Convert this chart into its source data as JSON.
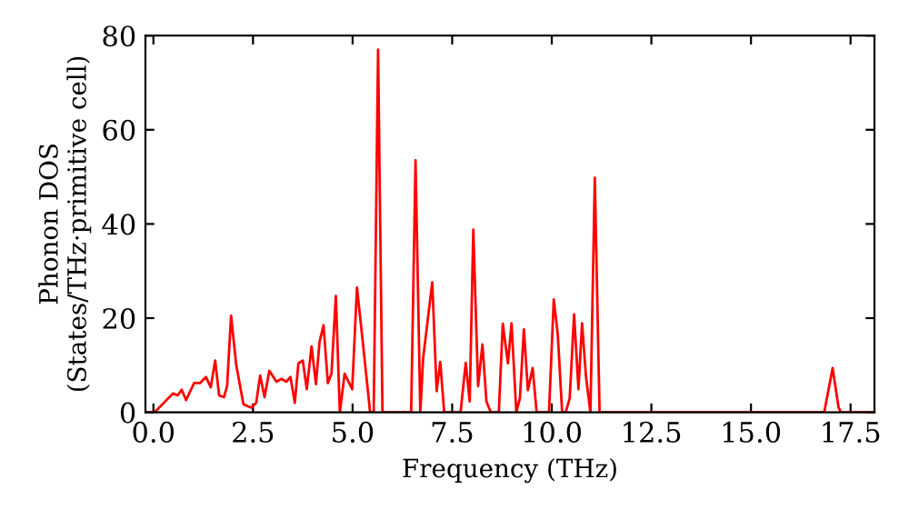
{
  "chart_data": {
    "type": "line",
    "xlabel": "Frequency (THz)",
    "ylabel": "Phonon DOS\n(States/THz·primitive cell)",
    "series": [
      {
        "color": "#ff0000",
        "x": [
          -0.2,
          0.03,
          0.49,
          0.61,
          0.71,
          0.82,
          1.02,
          1.17,
          1.32,
          1.44,
          1.55,
          1.65,
          1.77,
          1.85,
          1.95,
          2.08,
          2.26,
          2.45,
          2.58,
          2.68,
          2.79,
          2.91,
          3.09,
          3.21,
          3.34,
          3.44,
          3.55,
          3.64,
          3.75,
          3.85,
          3.97,
          4.08,
          4.17,
          4.27,
          4.38,
          4.47,
          4.58,
          4.68,
          4.8,
          4.99,
          5.11,
          5.3,
          5.44,
          5.53,
          5.64,
          5.75,
          6.47,
          6.58,
          6.7,
          6.77,
          7.0,
          7.11,
          7.2,
          7.3,
          7.71,
          7.84,
          7.94,
          8.03,
          8.15,
          8.26,
          8.36,
          8.47,
          8.67,
          8.77,
          8.9,
          8.99,
          9.11,
          9.2,
          9.3,
          9.4,
          9.52,
          9.62,
          9.93,
          10.05,
          10.15,
          10.26,
          10.35,
          10.45,
          10.56,
          10.67,
          10.76,
          10.86,
          10.97,
          11.08,
          11.2,
          16.84,
          17.05,
          17.2,
          17.26,
          18.05
        ],
        "values": [
          0,
          0,
          4,
          3.6,
          4.8,
          2.6,
          6.2,
          6.2,
          7.5,
          5.3,
          11,
          3.6,
          3.2,
          5.6,
          20.5,
          10,
          1.7,
          1,
          2,
          7.8,
          3.2,
          8.8,
          6.5,
          7.1,
          6.5,
          7.5,
          2,
          10.4,
          11,
          4.9,
          14,
          6,
          14.9,
          18.5,
          6.2,
          8.2,
          24.7,
          0,
          8.2,
          4.9,
          26.5,
          11.4,
          0,
          0,
          77,
          0,
          0,
          53.5,
          0,
          11.4,
          27.6,
          4.5,
          10.7,
          0,
          0,
          10.5,
          2.3,
          38.8,
          5.6,
          14.4,
          2.3,
          0,
          0,
          18.8,
          10.4,
          18.9,
          0,
          3,
          17.6,
          4.7,
          9.4,
          0,
          0,
          24,
          16.6,
          0,
          0,
          3,
          20.8,
          4.9,
          18.9,
          7.5,
          0,
          49.8,
          0,
          0,
          9.4,
          1,
          0,
          0
        ]
      }
    ],
    "xlim": [
      -0.2,
      18.1
    ],
    "ylim": [
      0,
      80
    ],
    "xticks": [
      {
        "value": 0,
        "label": "0.0"
      },
      2.5,
      {
        "value": 5,
        "label": "5.0"
      },
      7.5,
      {
        "value": 10,
        "label": "10.0"
      },
      12.5,
      {
        "value": 15,
        "label": "15.0"
      },
      17.5
    ],
    "yticks": [
      0,
      20,
      40,
      60,
      80
    ],
    "grid": false,
    "marker": "none",
    "line_style": "solid"
  }
}
